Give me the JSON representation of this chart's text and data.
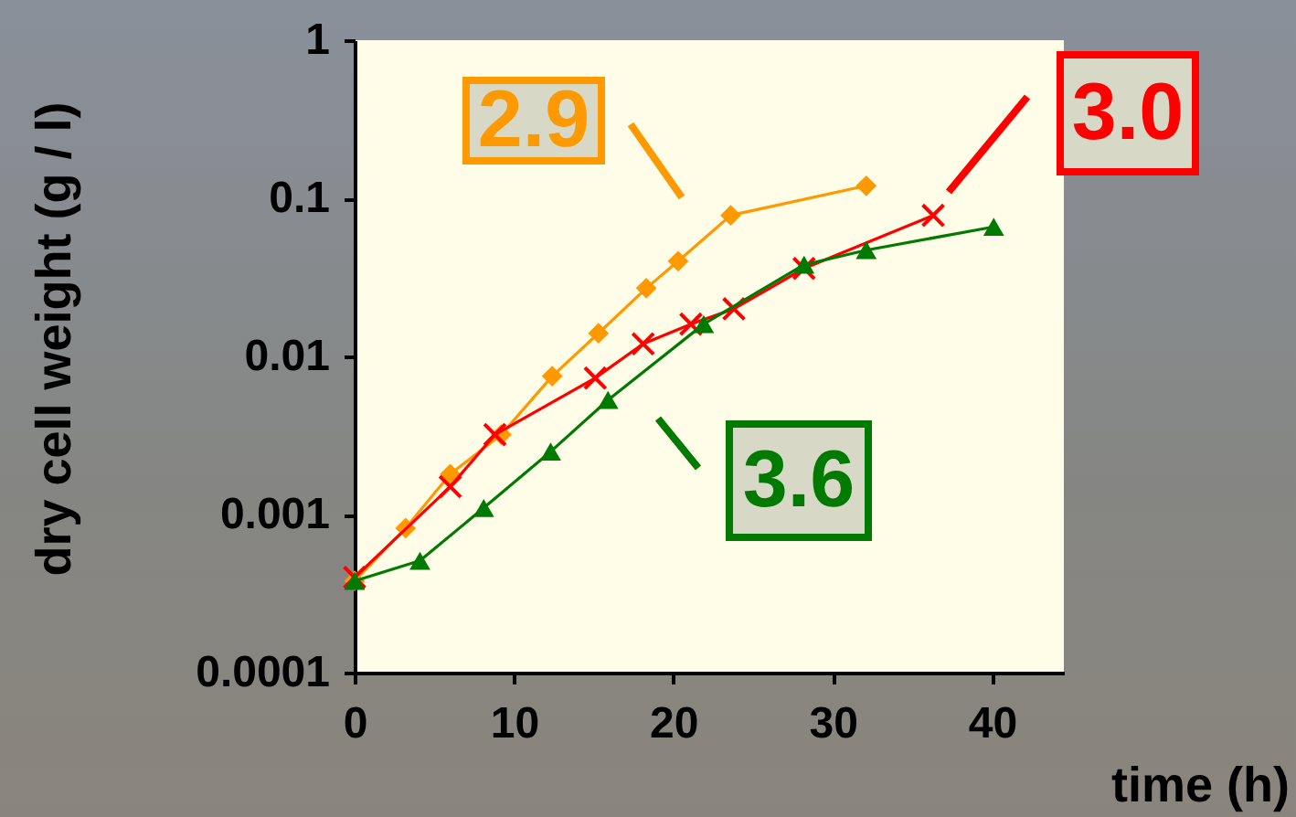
{
  "chart_data": {
    "type": "line",
    "xlabel": "time (h)",
    "ylabel": "dry cell weight (g / l)",
    "log": "y",
    "xlim": [
      0,
      44.5
    ],
    "xticks": [
      0,
      10,
      20,
      30,
      40
    ],
    "ylim": [
      0.0001,
      1
    ],
    "yticks": [
      0.0001,
      0.001,
      0.01,
      0.1,
      1
    ],
    "grid": false,
    "annotations": [
      "2.9",
      "3.0",
      "3.6"
    ],
    "series": [
      {
        "color": "#ff9900",
        "marker": "diamond",
        "x": [
          0,
          3.2,
          6.0,
          9.2,
          12.4,
          15.3,
          18.3,
          20.3,
          23.6,
          32.1
        ],
        "values": [
          0.00038,
          0.00082,
          0.0018,
          0.0032,
          0.0075,
          0.014,
          0.027,
          0.04,
          0.078,
          0.12
        ]
      },
      {
        "color": "#ff0000",
        "marker": "cross",
        "x": [
          0,
          6.0,
          8.8,
          15.1,
          18.1,
          21.1,
          23.8,
          28.2,
          36.3
        ],
        "values": [
          0.0004,
          0.0015,
          0.0032,
          0.0073,
          0.012,
          0.016,
          0.02,
          0.036,
          0.078
        ]
      },
      {
        "color": "#007a00",
        "marker": "triangle",
        "x": [
          0,
          4.1,
          8.1,
          12.3,
          15.9,
          21.9,
          28.2,
          32.1,
          40.1
        ],
        "values": [
          0.00038,
          0.00051,
          0.0011,
          0.0025,
          0.0053,
          0.016,
          0.038,
          0.047,
          0.066
        ]
      }
    ]
  }
}
